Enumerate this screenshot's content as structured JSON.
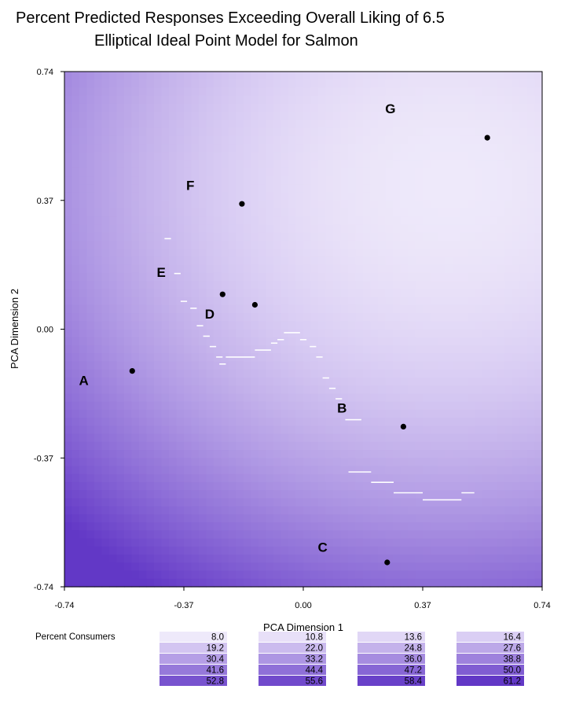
{
  "chart_data": {
    "type": "heatmap",
    "title": "Percent Predicted Responses Exceeding Overall Liking of 6.5",
    "subtitle": "Elliptical Ideal Point Model for Salmon",
    "xlabel": "PCA Dimension 1",
    "ylabel": "PCA Dimension 2",
    "xlim": [
      -0.74,
      0.74
    ],
    "ylim": [
      -0.74,
      0.74
    ],
    "x_ticks": [
      "-0.74",
      "-0.37",
      "0.00",
      "0.37",
      "0.74"
    ],
    "y_ticks": [
      "0.74",
      "0.37",
      "0.00",
      "-0.37",
      "-0.74"
    ],
    "points": [
      {
        "label": "A",
        "x": -0.53,
        "y": -0.12,
        "label_x": -0.68,
        "label_y": -0.16
      },
      {
        "label": "B",
        "x": 0.31,
        "y": -0.28,
        "label_x": 0.12,
        "label_y": -0.24
      },
      {
        "label": "C",
        "x": 0.26,
        "y": -0.67,
        "label_x": 0.06,
        "label_y": -0.64
      },
      {
        "label": "D",
        "x": -0.15,
        "y": 0.07,
        "label_x": -0.29,
        "label_y": 0.03
      },
      {
        "label": "E",
        "x": -0.25,
        "y": 0.1,
        "label_x": -0.44,
        "label_y": 0.15
      },
      {
        "label": "F",
        "x": -0.19,
        "y": 0.36,
        "label_x": -0.35,
        "label_y": 0.4
      },
      {
        "label": "G",
        "x": 0.57,
        "y": 0.55,
        "label_x": 0.27,
        "label_y": 0.62
      }
    ],
    "surface": {
      "optimum": [
        0.45,
        0.42
      ],
      "peak_min_percent": 8.0,
      "low_corner_percent": 61.2
    },
    "legend": {
      "title": "Percent Consumers",
      "levels": [
        "8.0",
        "10.8",
        "13.6",
        "16.4",
        "19.2",
        "22.0",
        "24.8",
        "27.6",
        "30.4",
        "33.2",
        "36.0",
        "38.8",
        "41.6",
        "44.4",
        "47.2",
        "50.0",
        "52.8",
        "55.6",
        "58.4",
        "61.2"
      ],
      "colors": [
        "#eee9fa",
        "#e8e0f8",
        "#e1d7f6",
        "#dacef4",
        "#d3c5f1",
        "#cbbbee",
        "#c4b2eb",
        "#bca8e8",
        "#b59fe6",
        "#ad96e3",
        "#a68ce0",
        "#9e82dd",
        "#9679da",
        "#8f70d8",
        "#8766d5",
        "#805dd2",
        "#7853cf",
        "#714acc",
        "#6941c9",
        "#6238c6"
      ]
    }
  }
}
